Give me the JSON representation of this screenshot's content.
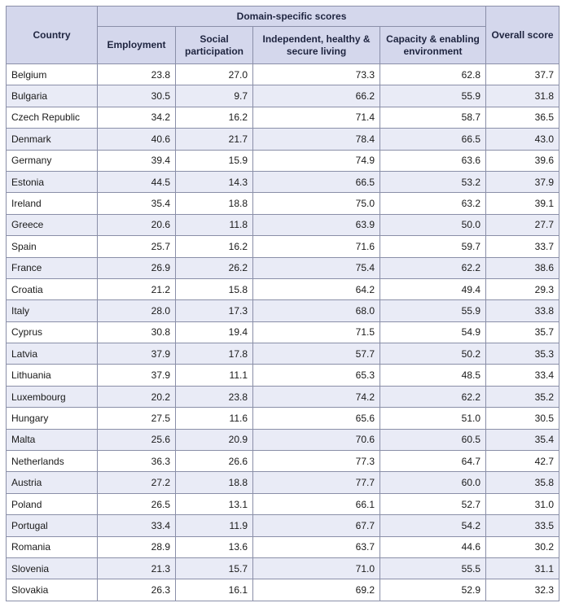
{
  "header": {
    "country": "Country",
    "domain_group": "Domain-specific scores",
    "employment": "Employment",
    "social_participation": "Social participation",
    "independent_living": "Independent, healthy & secure living",
    "capacity_environment": "Capacity & enabling environment",
    "overall": "Overall score"
  },
  "rows": [
    {
      "country": "Belgium",
      "employment": "23.8",
      "social": "27.0",
      "independent": "73.3",
      "capacity": "62.8",
      "overall": "37.7"
    },
    {
      "country": "Bulgaria",
      "employment": "30.5",
      "social": "9.7",
      "independent": "66.2",
      "capacity": "55.9",
      "overall": "31.8"
    },
    {
      "country": "Czech Republic",
      "employment": "34.2",
      "social": "16.2",
      "independent": "71.4",
      "capacity": "58.7",
      "overall": "36.5"
    },
    {
      "country": "Denmark",
      "employment": "40.6",
      "social": "21.7",
      "independent": "78.4",
      "capacity": "66.5",
      "overall": "43.0"
    },
    {
      "country": "Germany",
      "employment": "39.4",
      "social": "15.9",
      "independent": "74.9",
      "capacity": "63.6",
      "overall": "39.6"
    },
    {
      "country": "Estonia",
      "employment": "44.5",
      "social": "14.3",
      "independent": "66.5",
      "capacity": "53.2",
      "overall": "37.9"
    },
    {
      "country": "Ireland",
      "employment": "35.4",
      "social": "18.8",
      "independent": "75.0",
      "capacity": "63.2",
      "overall": "39.1"
    },
    {
      "country": "Greece",
      "employment": "20.6",
      "social": "11.8",
      "independent": "63.9",
      "capacity": "50.0",
      "overall": "27.7"
    },
    {
      "country": "Spain",
      "employment": "25.7",
      "social": "16.2",
      "independent": "71.6",
      "capacity": "59.7",
      "overall": "33.7"
    },
    {
      "country": "France",
      "employment": "26.9",
      "social": "26.2",
      "independent": "75.4",
      "capacity": "62.2",
      "overall": "38.6"
    },
    {
      "country": "Croatia",
      "employment": "21.2",
      "social": "15.8",
      "independent": "64.2",
      "capacity": "49.4",
      "overall": "29.3"
    },
    {
      "country": "Italy",
      "employment": "28.0",
      "social": "17.3",
      "independent": "68.0",
      "capacity": "55.9",
      "overall": "33.8"
    },
    {
      "country": "Cyprus",
      "employment": "30.8",
      "social": "19.4",
      "independent": "71.5",
      "capacity": "54.9",
      "overall": "35.7"
    },
    {
      "country": "Latvia",
      "employment": "37.9",
      "social": "17.8",
      "independent": "57.7",
      "capacity": "50.2",
      "overall": "35.3"
    },
    {
      "country": "Lithuania",
      "employment": "37.9",
      "social": "11.1",
      "independent": "65.3",
      "capacity": "48.5",
      "overall": "33.4"
    },
    {
      "country": "Luxembourg",
      "employment": "20.2",
      "social": "23.8",
      "independent": "74.2",
      "capacity": "62.2",
      "overall": "35.2"
    },
    {
      "country": "Hungary",
      "employment": "27.5",
      "social": "11.6",
      "independent": "65.6",
      "capacity": "51.0",
      "overall": "30.5"
    },
    {
      "country": "Malta",
      "employment": "25.6",
      "social": "20.9",
      "independent": "70.6",
      "capacity": "60.5",
      "overall": "35.4"
    },
    {
      "country": "Netherlands",
      "employment": "36.3",
      "social": "26.6",
      "independent": "77.3",
      "capacity": "64.7",
      "overall": "42.7"
    },
    {
      "country": "Austria",
      "employment": "27.2",
      "social": "18.8",
      "independent": "77.7",
      "capacity": "60.0",
      "overall": "35.8"
    },
    {
      "country": "Poland",
      "employment": "26.5",
      "social": "13.1",
      "independent": "66.1",
      "capacity": "52.7",
      "overall": "31.0"
    },
    {
      "country": "Portugal",
      "employment": "33.4",
      "social": "11.9",
      "independent": "67.7",
      "capacity": "54.2",
      "overall": "33.5"
    },
    {
      "country": "Romania",
      "employment": "28.9",
      "social": "13.6",
      "independent": "63.7",
      "capacity": "44.6",
      "overall": "30.2"
    },
    {
      "country": "Slovenia",
      "employment": "21.3",
      "social": "15.7",
      "independent": "71.0",
      "capacity": "55.5",
      "overall": "31.1"
    },
    {
      "country": "Slovakia",
      "employment": "26.3",
      "social": "16.1",
      "independent": "69.2",
      "capacity": "52.9",
      "overall": "32.3"
    }
  ],
  "colors": {
    "header_bg": "#d4d7ec",
    "stripe_bg": "#e9ebf6",
    "border": "#8a8fa8"
  }
}
